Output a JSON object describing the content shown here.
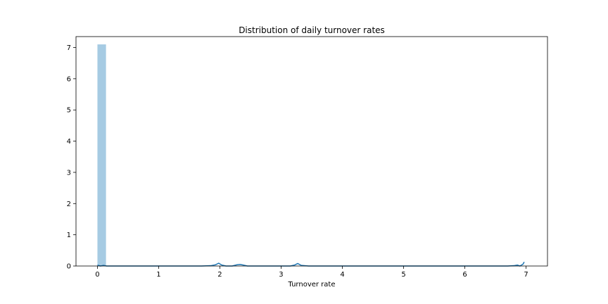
{
  "chart_data": {
    "type": "bar",
    "title": "Distribution of daily turnover rates",
    "xlabel": "Turnover rate",
    "ylabel": "",
    "xlim": [
      -0.35,
      7.35
    ],
    "ylim": [
      0,
      7.35
    ],
    "xticks": [
      0,
      1,
      2,
      3,
      4,
      5,
      6,
      7
    ],
    "yticks": [
      0,
      1,
      2,
      3,
      4,
      5,
      6,
      7
    ],
    "grid": false,
    "legend": "none",
    "bar_color": "#a6cbe3",
    "line_color": "#1f77b4",
    "histogram": {
      "bins": [
        {
          "x0": 0.0,
          "x1": 0.14,
          "value": 7.1
        }
      ]
    },
    "kde": {
      "x": [
        0.0,
        0.05,
        0.1,
        0.15,
        0.3,
        0.6,
        1.0,
        1.5,
        1.7,
        1.85,
        1.93,
        1.98,
        2.03,
        2.1,
        2.2,
        2.28,
        2.33,
        2.38,
        2.45,
        2.6,
        3.0,
        3.15,
        3.22,
        3.27,
        3.33,
        3.45,
        3.7,
        4.5,
        5.5,
        6.5,
        6.7,
        6.8,
        6.86,
        6.9,
        6.95,
        6.97
      ],
      "y": [
        0.03,
        0.0,
        0.02,
        0.0,
        0.0,
        0.0,
        0.0,
        0.0,
        0.0,
        0.01,
        0.04,
        0.09,
        0.03,
        0.0,
        0.0,
        0.04,
        0.05,
        0.03,
        0.0,
        0.0,
        0.0,
        0.0,
        0.03,
        0.08,
        0.02,
        0.0,
        0.0,
        0.0,
        0.0,
        0.0,
        0.0,
        0.01,
        0.03,
        0.0,
        0.06,
        0.13
      ]
    }
  }
}
